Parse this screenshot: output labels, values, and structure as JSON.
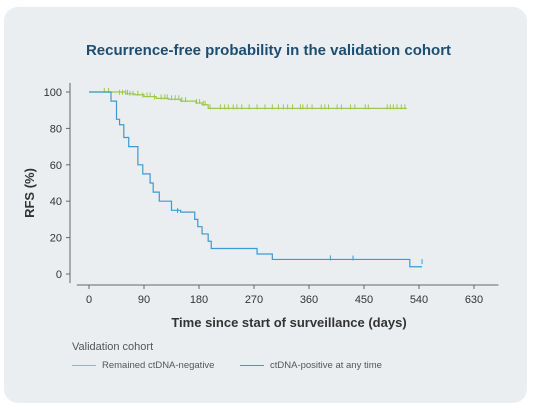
{
  "chart_data": {
    "type": "line",
    "title": "Recurrence-free probability in the validation cohort",
    "xlabel": "Time since start of surveillance (days)",
    "ylabel": "RFS (%)",
    "xlim": [
      -20,
      670
    ],
    "ylim": [
      -5,
      105
    ],
    "xticks": [
      0,
      90,
      180,
      270,
      360,
      450,
      540,
      630
    ],
    "yticks": [
      0,
      20,
      40,
      60,
      80,
      100
    ],
    "grid": false,
    "legend_title": "Validation cohort",
    "legend_position": "bottom-left",
    "series": [
      {
        "name": "Remained ctDNA-negative",
        "color": "#9cc84b",
        "step": [
          [
            0,
            100
          ],
          [
            45,
            100
          ],
          [
            60,
            99
          ],
          [
            75,
            98.5
          ],
          [
            90,
            97.5
          ],
          [
            110,
            96.5
          ],
          [
            130,
            96
          ],
          [
            150,
            95
          ],
          [
            175,
            94
          ],
          [
            185,
            93
          ],
          [
            195,
            91
          ],
          [
            520,
            91
          ]
        ],
        "censor": [
          [
            25,
            100
          ],
          [
            32,
            100
          ],
          [
            50,
            99
          ],
          [
            55,
            99
          ],
          [
            60,
            99
          ],
          [
            63,
            99
          ],
          [
            67,
            98.5
          ],
          [
            72,
            98.5
          ],
          [
            80,
            98.5
          ],
          [
            88,
            97.5
          ],
          [
            95,
            97.5
          ],
          [
            100,
            97.5
          ],
          [
            107,
            96.5
          ],
          [
            118,
            96.5
          ],
          [
            124,
            96.5
          ],
          [
            128,
            96.5
          ],
          [
            135,
            96
          ],
          [
            141,
            96
          ],
          [
            147,
            96
          ],
          [
            152,
            95
          ],
          [
            158,
            95
          ],
          [
            176,
            94
          ],
          [
            181,
            94
          ],
          [
            187,
            93
          ],
          [
            190,
            93
          ],
          [
            198,
            91
          ],
          [
            215,
            91
          ],
          [
            222,
            91
          ],
          [
            228,
            91
          ],
          [
            236,
            91
          ],
          [
            242,
            91
          ],
          [
            250,
            91
          ],
          [
            262,
            91
          ],
          [
            275,
            91
          ],
          [
            288,
            91
          ],
          [
            300,
            91
          ],
          [
            310,
            91
          ],
          [
            318,
            91
          ],
          [
            325,
            91
          ],
          [
            333,
            91
          ],
          [
            346,
            91
          ],
          [
            350,
            91
          ],
          [
            357,
            91
          ],
          [
            365,
            91
          ],
          [
            380,
            91
          ],
          [
            386,
            91
          ],
          [
            392,
            91
          ],
          [
            406,
            91
          ],
          [
            413,
            91
          ],
          [
            428,
            91
          ],
          [
            435,
            91
          ],
          [
            452,
            91
          ],
          [
            457,
            91
          ],
          [
            488,
            91
          ],
          [
            493,
            91
          ],
          [
            498,
            91
          ],
          [
            504,
            91
          ],
          [
            511,
            91
          ],
          [
            517,
            91
          ]
        ]
      },
      {
        "name": "ctDNA-positive at any time",
        "color": "#3a9bd3",
        "step": [
          [
            0,
            100
          ],
          [
            32,
            100
          ],
          [
            36,
            95
          ],
          [
            45,
            85
          ],
          [
            50,
            82
          ],
          [
            57,
            75
          ],
          [
            65,
            70
          ],
          [
            80,
            60
          ],
          [
            88,
            55
          ],
          [
            100,
            50
          ],
          [
            105,
            45
          ],
          [
            115,
            40
          ],
          [
            135,
            35
          ],
          [
            150,
            34
          ],
          [
            173,
            30
          ],
          [
            178,
            26
          ],
          [
            185,
            22
          ],
          [
            195,
            18
          ],
          [
            200,
            14
          ],
          [
            275,
            11
          ],
          [
            300,
            8
          ],
          [
            520,
            8
          ],
          [
            525,
            4
          ],
          [
            545,
            4
          ]
        ],
        "censor": [
          [
            145,
            34
          ],
          [
            395,
            8
          ],
          [
            432,
            8
          ],
          [
            545,
            6
          ]
        ]
      }
    ]
  }
}
